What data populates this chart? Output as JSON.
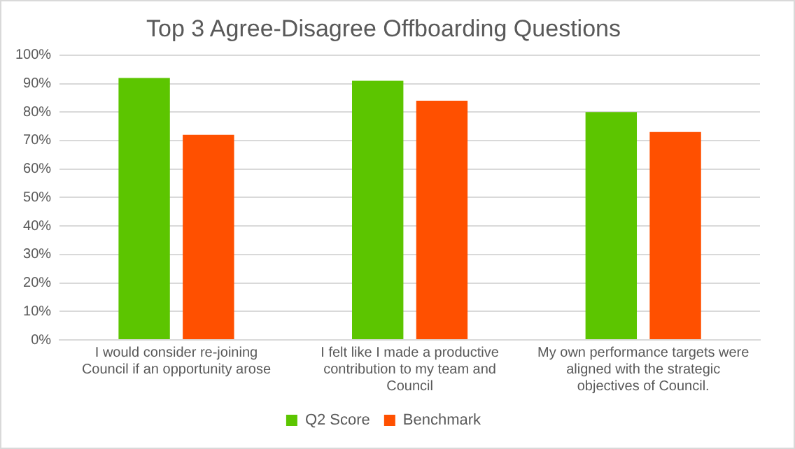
{
  "chart_data": {
    "type": "bar",
    "title": "Top 3 Agree-Disagree Offboarding Questions",
    "categories": [
      "I would consider re-joining Council if an opportunity arose",
      "I felt like I made a productive contribution to my team and Council",
      "My own performance targets were aligned with the strategic objectives of Council."
    ],
    "series": [
      {
        "name": "Q2 Score",
        "color": "#5cc500",
        "values": [
          92,
          91,
          80
        ]
      },
      {
        "name": "Benchmark",
        "color": "#ff5000",
        "values": [
          72,
          84,
          73
        ]
      }
    ],
    "ylim": [
      0,
      100
    ],
    "yticks": [
      {
        "value": 0,
        "label": "0%"
      },
      {
        "value": 10,
        "label": "10%"
      },
      {
        "value": 20,
        "label": "20%"
      },
      {
        "value": 30,
        "label": "30%"
      },
      {
        "value": 40,
        "label": "40%"
      },
      {
        "value": 50,
        "label": "50%"
      },
      {
        "value": 60,
        "label": "60%"
      },
      {
        "value": 70,
        "label": "70%"
      },
      {
        "value": 80,
        "label": "80%"
      },
      {
        "value": 90,
        "label": "90%"
      },
      {
        "value": 100,
        "label": "100%"
      }
    ],
    "grid": "y",
    "legend": "bottom"
  }
}
